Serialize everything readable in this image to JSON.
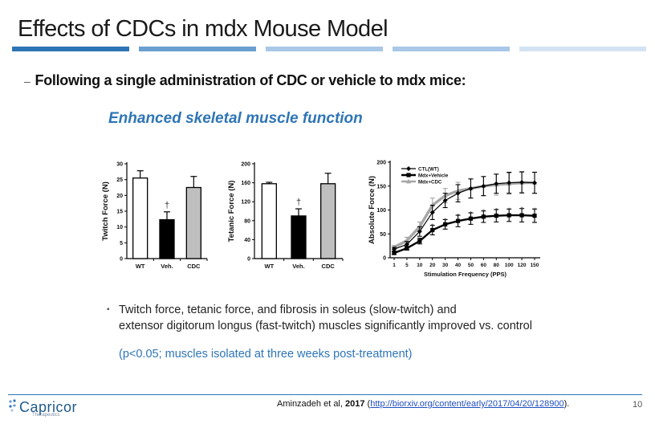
{
  "slide_title": "Effects of CDCs in mdx Mouse Model",
  "accent_colors": [
    "#2e75b6",
    "#6a9fd0",
    "#a9c7e6",
    "#d3e3f3"
  ],
  "subtitle_dash": "–",
  "subtitle": "Following a single administration of CDC or vehicle to mdx mice:",
  "section_heading": "Enhanced skeletal muscle function",
  "chart_data": [
    {
      "type": "bar",
      "ylabel": "Twitch Force (N)",
      "categories": [
        "WT",
        "Veh.",
        "CDC"
      ],
      "values": [
        25.5,
        12.3,
        22.5
      ],
      "errors": [
        2.3,
        2.5,
        3.5
      ],
      "ylim": [
        0,
        30
      ],
      "yticks": [
        0,
        5,
        10,
        15,
        20,
        25,
        30
      ],
      "bar_colors": [
        "#ffffff",
        "#000000",
        "#bfbfbf"
      ],
      "significance": [
        {
          "category": "Veh.",
          "symbol": "†"
        }
      ]
    },
    {
      "type": "bar",
      "ylabel": "Tetanic Force (N)",
      "categories": [
        "WT",
        "Veh.",
        "CDC"
      ],
      "values": [
        158,
        90,
        158
      ],
      "errors": [
        3,
        15,
        22
      ],
      "ylim": [
        0,
        200
      ],
      "yticks": [
        0,
        40,
        80,
        120,
        160,
        200
      ],
      "bar_colors": [
        "#ffffff",
        "#000000",
        "#bfbfbf"
      ],
      "significance": [
        {
          "category": "Veh.",
          "symbol": "†"
        }
      ]
    },
    {
      "type": "line",
      "ylabel": "Absolute Force (N)",
      "xlabel": "Stimulation Frequency (PPS)",
      "x": [
        "1",
        "5",
        "10",
        "20",
        "30",
        "40",
        "50",
        "60",
        "80",
        "100",
        "120",
        "150"
      ],
      "ylim": [
        0,
        200
      ],
      "yticks": [
        0,
        50,
        100,
        150,
        200
      ],
      "legend_position": "top-left",
      "series": [
        {
          "name": "CTL(WT)",
          "marker": "diamond",
          "color": "#000000",
          "values": [
            18,
            28,
            55,
            95,
            120,
            135,
            145,
            150,
            155,
            157,
            158,
            157
          ],
          "errors": [
            4,
            6,
            10,
            15,
            15,
            18,
            20,
            20,
            20,
            22,
            22,
            22
          ]
        },
        {
          "name": "Mdx+Vehicle",
          "marker": "square",
          "color": "#000000",
          "values": [
            10,
            20,
            35,
            58,
            70,
            77,
            82,
            86,
            88,
            89,
            89,
            88
          ],
          "errors": [
            3,
            4,
            6,
            10,
            10,
            12,
            12,
            12,
            13,
            13,
            14,
            14
          ]
        },
        {
          "name": "Mdx+CDC",
          "marker": "triangle",
          "color": "#a6a6a6",
          "values": [
            22,
            36,
            65,
            110,
            130,
            140,
            145,
            150,
            153,
            155,
            157,
            157
          ],
          "errors": [
            4,
            7,
            10,
            15,
            15,
            18,
            20,
            20,
            22,
            22,
            22,
            22
          ]
        }
      ],
      "significance": {
        "symbol": "*",
        "x_indices": [
          3,
          4,
          5,
          6,
          7,
          8,
          9,
          10,
          11
        ]
      }
    }
  ],
  "bullet_marker": "▪",
  "bullet_text_line1": "Twitch force, tetanic force, and fibrosis in soleus (slow-twitch) and",
  "bullet_text_line2": "extensor digitorum longus (fast-twitch) muscles significantly improved vs. control",
  "note": "(p<0.05; muscles isolated at three weeks post-treatment)",
  "citation_authors": "Aminzadeh et al,",
  "citation_year": "2017",
  "citation_open": "(",
  "citation_url": "http://biorxiv.org/content/early/2017/04/20/128900",
  "citation_close": ").",
  "page_number": "10",
  "logo_name": "Capricor",
  "logo_tagline": "Therapeutics"
}
